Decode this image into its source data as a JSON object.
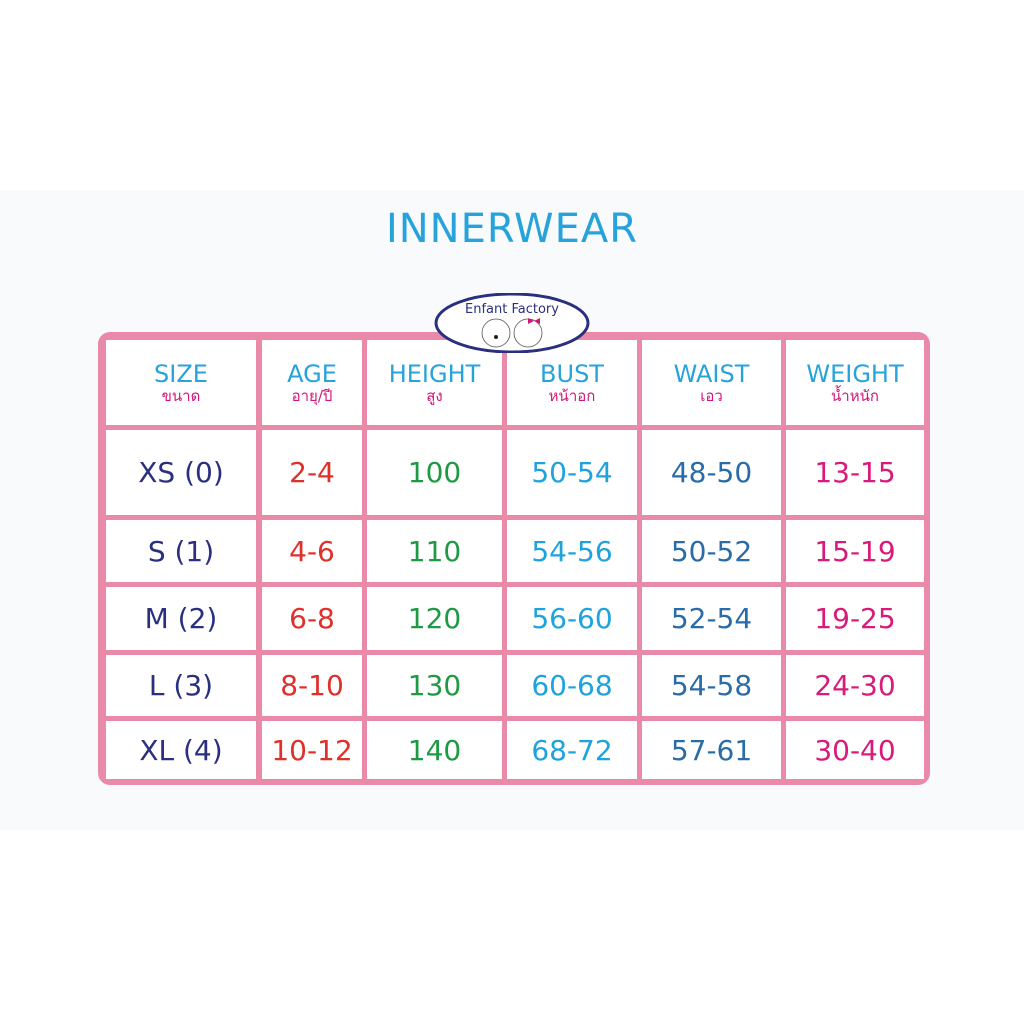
{
  "title": "INNERWEAR",
  "logo_text": "Enfant Factory",
  "colors": {
    "border": "#e98aa8",
    "title": "#27a3dc",
    "thai_label": "#d4147a",
    "size": "#2a2f7f",
    "age": "#e0302a",
    "height": "#1e9a45",
    "bust": "#1fa3dc",
    "waist": "#2a6ca8",
    "weight": "#d81b7a"
  },
  "headers": [
    {
      "en": "SIZE",
      "th": "ขนาด"
    },
    {
      "en": "AGE",
      "th": "อายุ/ปี"
    },
    {
      "en": "HEIGHT",
      "th": "สูง"
    },
    {
      "en": "BUST",
      "th": "หน้าอก"
    },
    {
      "en": "WAIST",
      "th": "เอว"
    },
    {
      "en": "WEIGHT",
      "th": "น้ำหนัก"
    }
  ],
  "rows": [
    [
      "XS (0)",
      "2-4",
      "100",
      "50-54",
      "48-50",
      "13-15"
    ],
    [
      "S (1)",
      "4-6",
      "110",
      "54-56",
      "50-52",
      "15-19"
    ],
    [
      "M (2)",
      "6-8",
      "120",
      "56-60",
      "52-54",
      "19-25"
    ],
    [
      "L (3)",
      "8-10",
      "130",
      "60-68",
      "54-58",
      "24-30"
    ],
    [
      "XL (4)",
      "10-12",
      "140",
      "68-72",
      "57-61",
      "30-40"
    ]
  ]
}
